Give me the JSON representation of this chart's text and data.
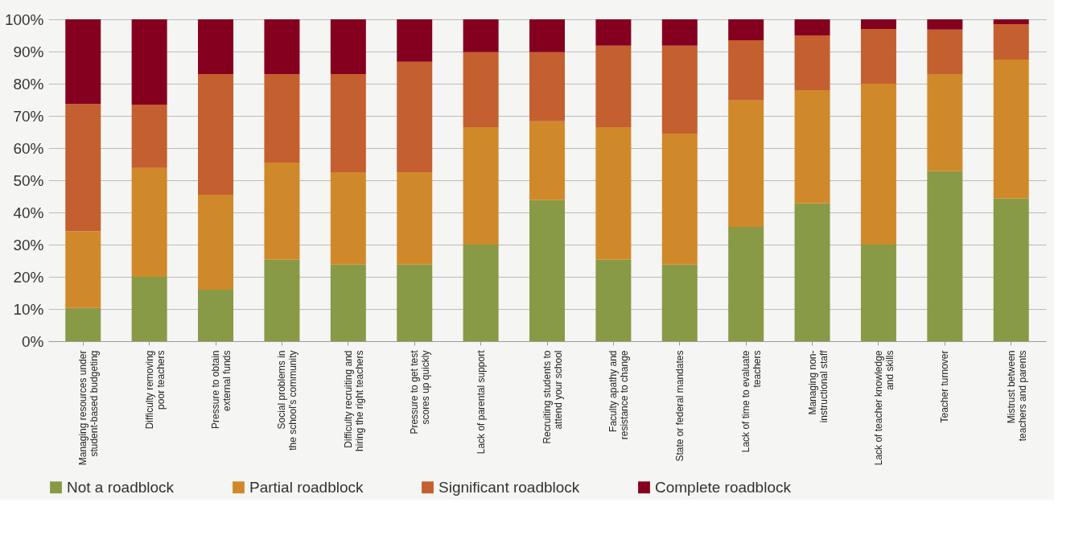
{
  "chart_data": {
    "type": "bar",
    "stacked": true,
    "categories": [
      "Managing resources under\nstudent-based budgeting",
      "Difficulty removing\npoor teachers",
      "Pressure to obtain\nexternal funds",
      "Social problems in\nthe school's community",
      "Difficulty recruiting and\nhiring the right teachers",
      "Pressure to get test\nscores up quickly",
      "Lack of parental support",
      "Recruiting students to\nattend your school",
      "Faculty apathy and\nresistance to change",
      "State or federal mandates",
      "Lack of time to evaluate\nteachers",
      "Managing non-\ninstructional staff",
      "Lack of teacher knowledge\nand skills",
      "Teacher turnover",
      "Mistrust between\nteachers and parents"
    ],
    "series": [
      {
        "name": "Not a roadblock",
        "color": "#889a45",
        "values": [
          10.3,
          20,
          16,
          25.3,
          23.8,
          23.8,
          30,
          43.8,
          25.3,
          23.8,
          35.5,
          42.8,
          30,
          52.8,
          44.3
        ]
      },
      {
        "name": "Partial roadblock",
        "color": "#d0892a",
        "values": [
          23.9,
          33.8,
          29.5,
          30.2,
          28.7,
          28.7,
          36.5,
          24.5,
          41.2,
          40.7,
          39.3,
          35.2,
          50,
          30.2,
          43.2
        ]
      },
      {
        "name": "Significant roadblock",
        "color": "#c45f2f",
        "values": [
          39.5,
          19.7,
          37.5,
          27.5,
          30.5,
          34.3,
          23.3,
          21.5,
          25.3,
          27.3,
          18.7,
          17,
          17,
          13.8,
          11
        ]
      },
      {
        "name": "Complete roadblock",
        "color": "#85001e",
        "values": [
          26.3,
          26.5,
          17,
          17,
          17,
          13.2,
          10.2,
          10.2,
          8.2,
          8.2,
          6.5,
          5,
          3,
          3.2,
          1.5
        ]
      }
    ],
    "ylim": [
      0,
      100
    ],
    "yticks": [
      {
        "value": 0,
        "label": "0%"
      },
      {
        "value": 10,
        "label": "10%"
      },
      {
        "value": 20,
        "label": "20%"
      },
      {
        "value": 30,
        "label": "30%"
      },
      {
        "value": 40,
        "label": "40%"
      },
      {
        "value": 50,
        "label": "50%"
      },
      {
        "value": 60,
        "label": "60%"
      },
      {
        "value": 70,
        "label": "70%"
      },
      {
        "value": 80,
        "label": "80%"
      },
      {
        "value": 90,
        "label": "90%"
      },
      {
        "value": 100,
        "label": "100%"
      }
    ],
    "grid": "y",
    "legend": "bottom"
  }
}
